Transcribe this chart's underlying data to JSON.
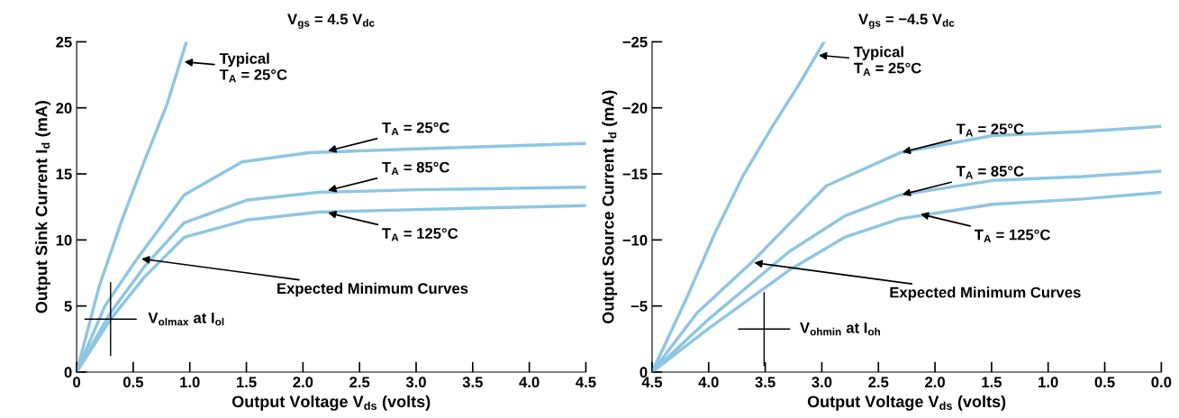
{
  "chart_data": [
    {
      "type": "line",
      "title": "V$_{gs}$ = 4.5 V$_{dc}$",
      "xlabel": "Output Voltage V$_{ds}$ (volts)",
      "ylabel": "Output Sink Current I$_{d}$ (mA)",
      "xlim": [
        0,
        4.5
      ],
      "ylim": [
        0,
        25
      ],
      "xticks": [
        0,
        0.5,
        {
          "value": 1,
          "label": "1.0"
        },
        1.5,
        {
          "value": 2,
          "label": "2.0"
        },
        2.5,
        {
          "value": 3,
          "label": "3.0"
        },
        3.5,
        {
          "value": 4,
          "label": "4.0"
        },
        4.5
      ],
      "yticks": [
        0,
        5,
        10,
        15,
        20,
        25
      ],
      "grid": false,
      "legend": false,
      "marker": "none",
      "line_style": "solid",
      "series": [
        {
          "color": "#8ec6e2",
          "x": [
            0,
            0.2,
            0.4,
            0.6,
            0.8,
            0.97
          ],
          "values": [
            0,
            6.5,
            11.5,
            16,
            20.3,
            25
          ]
        },
        {
          "color": "#8ec6e2",
          "x": [
            0,
            0.25,
            0.52,
            0.95,
            1.46,
            2.05,
            3.0,
            4.5
          ],
          "values": [
            0,
            5,
            8.4,
            13.4,
            15.9,
            16.6,
            16.9,
            17.3
          ]
        },
        {
          "color": "#8ec6e2",
          "x": [
            0,
            0.3,
            0.6,
            0.95,
            1.5,
            2.13,
            3.0,
            4.5
          ],
          "values": [
            0,
            4.5,
            8,
            11.3,
            13,
            13.6,
            13.8,
            14.0
          ]
        },
        {
          "color": "#8ec6e2",
          "x": [
            0,
            0.3,
            0.6,
            0.95,
            1.5,
            2.13,
            3.0,
            4.5
          ],
          "values": [
            0,
            4,
            7.2,
            10.2,
            11.5,
            12.1,
            12.3,
            12.6
          ]
        }
      ],
      "annotations": [
        {
          "text": "Typical\nT$_{A}$ = 25°C",
          "x": 0.93,
          "y": 23.5
        },
        {
          "text": "T$_{A}$ = 25°C",
          "x": 2.2,
          "y": 16.7
        },
        {
          "text": "T$_{A}$ = 85°C",
          "x": 2.2,
          "y": 13.7
        },
        {
          "text": "T$_{A}$ = 125°C",
          "x": 2.2,
          "y": 12.1
        },
        {
          "text": "Expected Minimum Curves",
          "x": 0.55,
          "y": 8.6
        },
        {
          "text": "V$_{olmax}$ at I$_{ol}$",
          "x": 0.3,
          "y": 4
        }
      ]
    },
    {
      "type": "line",
      "title": "V$_{gs}$ = −4.5 V$_{dc}$",
      "xlabel": "Output Voltage V$_{ds}$ (volts)",
      "ylabel": "Output Source Current I$_{d}$ (mA)",
      "xlim": [
        4.5,
        0
      ],
      "ylim": [
        0,
        -25
      ],
      "xticks": [
        4.5,
        {
          "value": 4,
          "label": "4.0"
        },
        3.5,
        {
          "value": 3,
          "label": "3.0"
        },
        2.5,
        {
          "value": 2,
          "label": "2.0"
        },
        1.5,
        {
          "value": 1,
          "label": "1.0"
        },
        0.5,
        {
          "value": 0,
          "label": "0.0"
        }
      ],
      "yticks": [
        0,
        {
          "value": -5,
          "label": "−5"
        },
        {
          "value": -10,
          "label": "−10"
        },
        {
          "value": -15,
          "label": "−15"
        },
        {
          "value": -20,
          "label": "−20"
        },
        {
          "value": -25,
          "label": "−25"
        }
      ],
      "grid": false,
      "legend": false,
      "marker": "none",
      "line_style": "solid",
      "series": [
        {
          "color": "#8ec6e2",
          "x": [
            4.5,
            4.2,
            3.94,
            3.7,
            3.45,
            3.2,
            2.98
          ],
          "values": [
            0,
            -5.5,
            -10.6,
            -14.8,
            -18.4,
            -21.8,
            -25
          ]
        },
        {
          "color": "#8ec6e2",
          "x": [
            4.5,
            4.1,
            3.62,
            2.96,
            2.31,
            1.49,
            0.7,
            0
          ],
          "values": [
            0,
            -4.5,
            -8.3,
            -14.1,
            -16.6,
            -17.9,
            -18.2,
            -18.6
          ]
        },
        {
          "color": "#8ec6e2",
          "x": [
            4.5,
            4.0,
            3.29,
            2.8,
            2.31,
            1.49,
            0.7,
            0
          ],
          "values": [
            0,
            -4,
            -9.1,
            -11.8,
            -13.4,
            -14.5,
            -14.8,
            -15.2
          ]
        },
        {
          "color": "#8ec6e2",
          "x": [
            4.5,
            4.0,
            3.29,
            2.8,
            2.31,
            1.49,
            0.7,
            0
          ],
          "values": [
            0,
            -3.3,
            -7.7,
            -10.2,
            -11.6,
            -12.7,
            -13.1,
            -13.6
          ]
        }
      ],
      "annotations": [
        {
          "text": "Typical\nT$_{A}$ = 25°C",
          "x": 3.05,
          "y": -24
        },
        {
          "text": "T$_{A}$ = 25°C",
          "x": 2.31,
          "y": -16.6
        },
        {
          "text": "T$_{A}$ = 85°C",
          "x": 2.31,
          "y": -13.4
        },
        {
          "text": "T$_{A}$ = 125°C",
          "x": 2.15,
          "y": -12.0
        },
        {
          "text": "Expected Minimum Curves",
          "x": 3.62,
          "y": -8.3
        },
        "V$_{ohmin}$ at I$_{oh}$"
      ]
    }
  ]
}
